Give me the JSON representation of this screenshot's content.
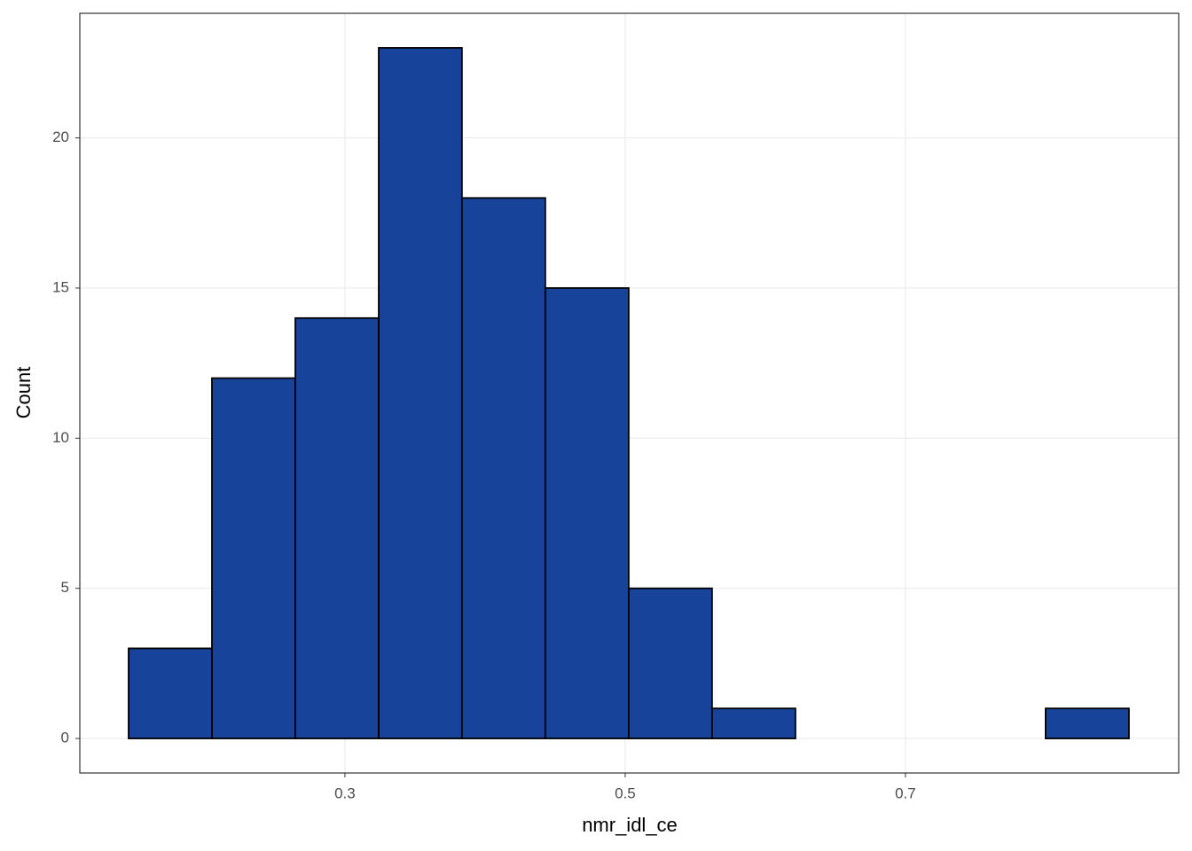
{
  "chart_data": {
    "type": "histogram",
    "x_label": "nmr_idl_ce",
    "y_label": "Count",
    "bins": [
      0.1456,
      0.2051,
      0.2646,
      0.3241,
      0.3835,
      0.443,
      0.5025,
      0.562,
      0.6215,
      0.681,
      0.7405,
      0.8,
      0.8595
    ],
    "values": [
      3,
      12,
      14,
      23,
      18,
      15,
      5,
      1,
      0,
      0,
      0,
      1
    ],
    "color": "#17449a",
    "xlim": [
      0.1108,
      0.895
    ],
    "xticks": [
      0.3,
      0.5,
      0.7
    ],
    "ylim": [
      -1.15,
      24.15
    ],
    "yticks": [
      0,
      5,
      10,
      15,
      20
    ],
    "grid": true
  }
}
